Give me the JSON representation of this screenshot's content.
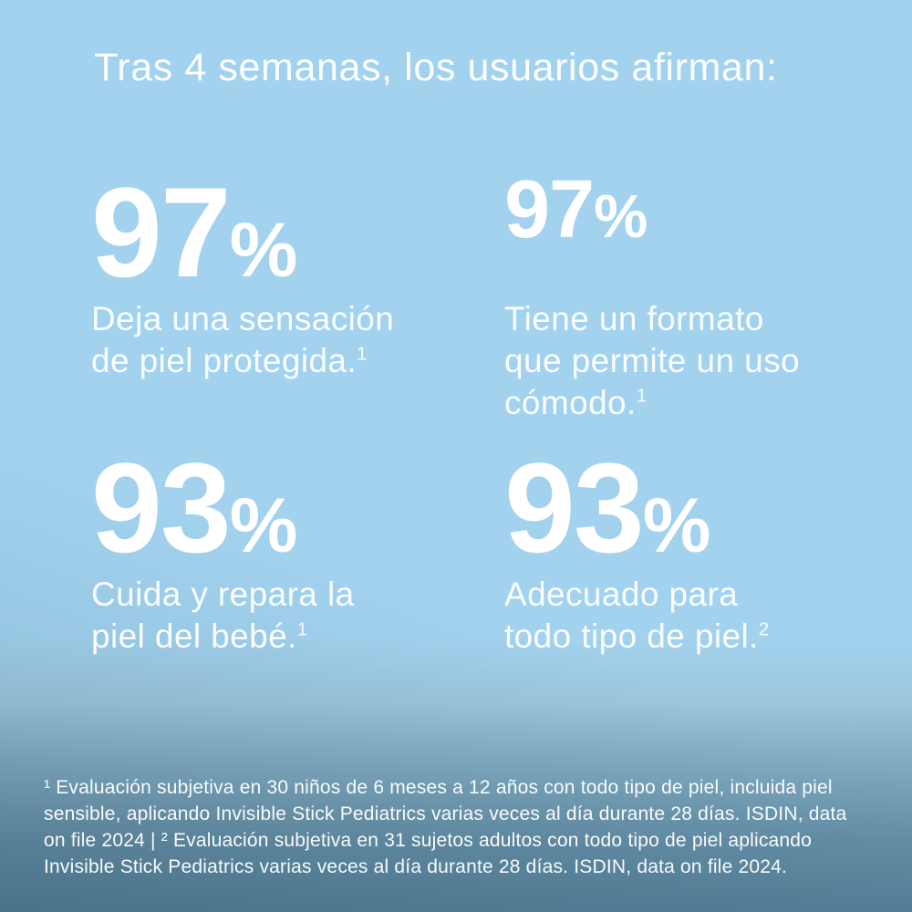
{
  "page": {
    "title": "Tras 4 semanas, los usuarios afirman:"
  },
  "stats": [
    {
      "value": "97",
      "unit": "%",
      "caption_lines": [
        "Deja una sensación",
        "de piel protegida."
      ],
      "footnote_ref": "1"
    },
    {
      "value": "97",
      "unit": "%",
      "caption_lines": [
        "Tiene un formato",
        "que permite un uso",
        "cómodo."
      ],
      "footnote_ref": "1"
    },
    {
      "value": "93",
      "unit": "%",
      "caption_lines": [
        "Cuida y repara la",
        "piel del bebé."
      ],
      "footnote_ref": "1"
    },
    {
      "value": "93",
      "unit": "%",
      "caption_lines": [
        "Adecuado para",
        "todo tipo de piel."
      ],
      "footnote_ref": "2"
    }
  ],
  "footnote": {
    "lines": [
      "¹ Evaluación subjetiva en 30 niños de 6 meses a 12 años con todo tipo de piel, incluida piel",
      "sensible, aplicando Invisible Stick Pediatrics varias veces al día durante 28 días. ISDIN, data",
      "on file 2024 | ² Evaluación subjetiva en 31 sujetos adultos con todo tipo de piel aplicando",
      "Invisible Stick Pediatrics varias veces al día durante 28 días. ISDIN, data on file 2024."
    ]
  },
  "colors": {
    "background_top": "#a2d2ee",
    "background_bottom": "#56819a",
    "text": "#ffffff"
  }
}
